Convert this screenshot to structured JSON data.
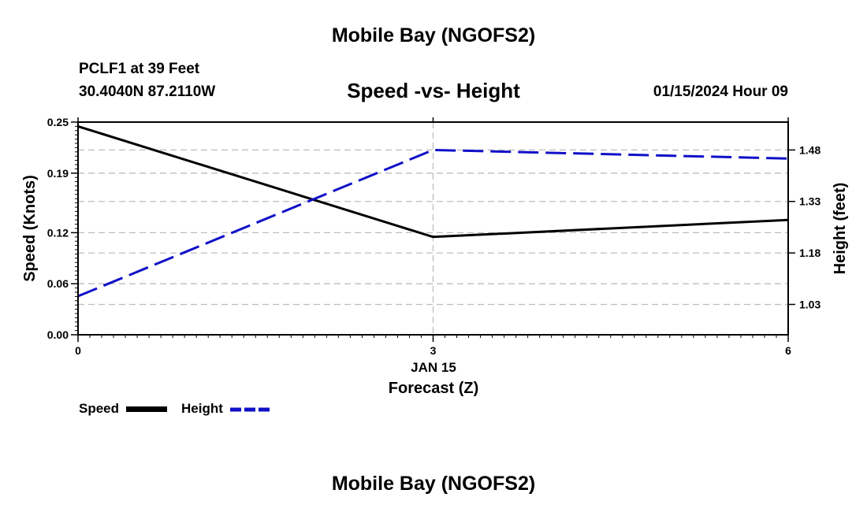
{
  "page": {
    "title_top": "Mobile Bay (NGOFS2)",
    "title_bottom": "Mobile Bay (NGOFS2)",
    "station": "PCLF1 at 39 Feet",
    "coords": "30.4040N  87.2110W",
    "datetime": "01/15/2024 Hour 09"
  },
  "colors": {
    "speed": "#000000",
    "height": "#1010c8",
    "grid": "#bdbdbd"
  },
  "chart_data": {
    "type": "line",
    "title": "Speed -vs- Height",
    "xlabel": "Forecast (Z)",
    "xdate_label": "JAN 15",
    "ylabel_left": "Speed (Knots)",
    "ylabel_right": "Height (feet)",
    "x_ticks": [
      0,
      3,
      6
    ],
    "x_tick_labels": [
      "0",
      "3",
      "6"
    ],
    "xlim": [
      0,
      6
    ],
    "ylim_left": [
      0,
      0.25
    ],
    "y_left_ticks": [
      0.0,
      0.06,
      0.12,
      0.19,
      0.25
    ],
    "y_left_tick_labels": [
      "0.00",
      "0.06",
      "0.12",
      "0.19",
      "0.25"
    ],
    "ylim_right": [
      0.9416,
      1.5612
    ],
    "y_right_ticks": [
      1.03,
      1.18,
      1.33,
      1.48
    ],
    "y_right_tick_labels": [
      "1.03",
      "1.18",
      "1.33",
      "1.48"
    ],
    "series": [
      {
        "name": "Speed",
        "axis": "left",
        "style": "solid",
        "x": [
          0,
          3,
          6
        ],
        "values": [
          0.245,
          0.115,
          0.135
        ]
      },
      {
        "name": "Height",
        "axis": "right",
        "style": "dashed",
        "x": [
          0,
          3,
          6
        ],
        "values": [
          1.054,
          1.48,
          1.455
        ]
      }
    ],
    "legend": [
      "Speed",
      "Height"
    ]
  }
}
